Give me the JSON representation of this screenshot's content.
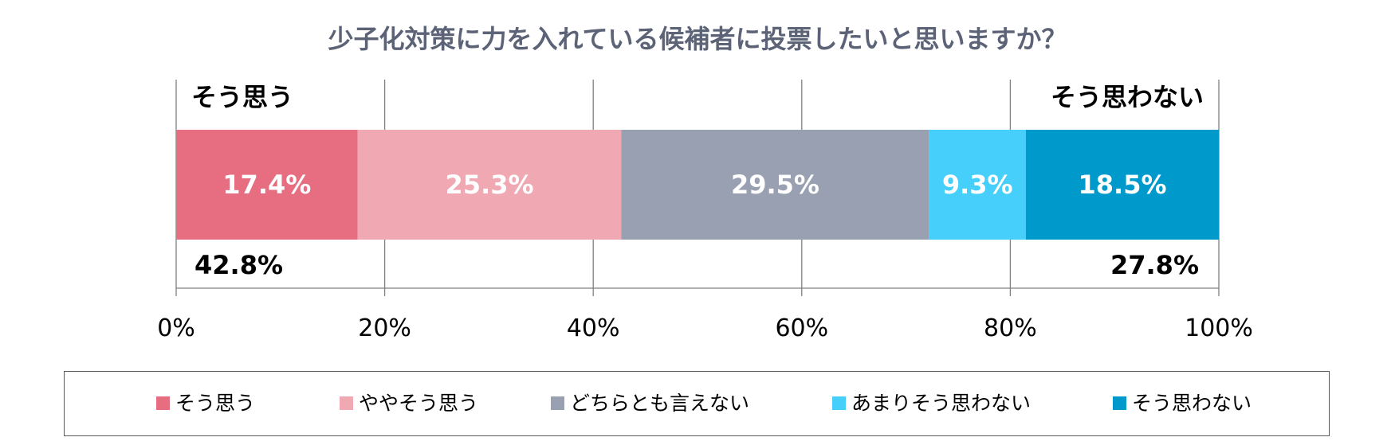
{
  "chart_data": {
    "type": "bar",
    "orientation": "horizontal-stacked",
    "title": "少子化対策に力を入れている候補者に投票したいと思いますか？",
    "categories": [
      ""
    ],
    "series": [
      {
        "name": "そう思う",
        "values": [
          17.4
        ],
        "label": "17.4%",
        "color": "#E76D80"
      },
      {
        "name": "ややそう思う",
        "values": [
          25.3
        ],
        "label": "25.3%",
        "color": "#F0A8B2"
      },
      {
        "name": "どちらとも言えない",
        "values": [
          29.5
        ],
        "label": "29.5%",
        "color": "#99A0B1"
      },
      {
        "name": "あまりそう思わない",
        "values": [
          9.3
        ],
        "label": "9.3%",
        "color": "#45CFFA"
      },
      {
        "name": "そう思わない",
        "values": [
          18.5
        ],
        "label": "18.5%",
        "color": "#0099CC"
      }
    ],
    "xlim": [
      0,
      100
    ],
    "xticks": [
      "0%",
      "20%",
      "40%",
      "60%",
      "80%",
      "100%"
    ],
    "grid": true,
    "legend_position": "bottom",
    "annotations": {
      "agree_label": "そう思う",
      "agree_total": "42.8%",
      "disagree_label": "そう思わない",
      "disagree_total": "27.8%"
    }
  },
  "colors": {
    "title": "#5C6377",
    "text": "#000000",
    "bar_text": "#FFFFFF",
    "grid": "#808080"
  }
}
